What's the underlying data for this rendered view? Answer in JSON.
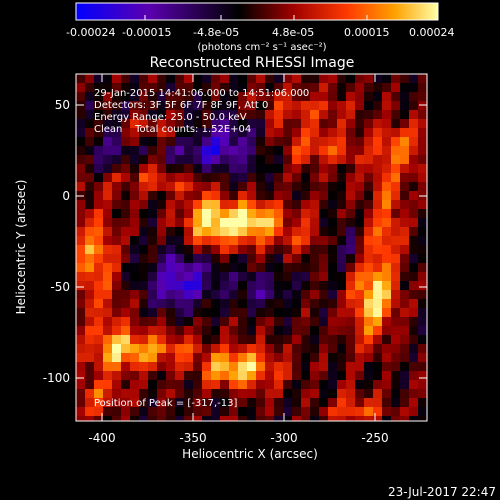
{
  "colorbar": {
    "tick_labels": [
      "-0.00024",
      "-0.00015",
      "-4.8e-05",
      "4.8e-05",
      "0.00015",
      "0.00024"
    ],
    "unit_label": "(photons cm⁻² s⁻¹ asec⁻²)",
    "range": [
      -0.00024,
      0.00024
    ]
  },
  "title": "Reconstructed RHESSI Image",
  "info": {
    "time_range": "29-Jan-2015 14:41:06.000 to 14:51:06.000",
    "detectors": "Detectors: 3F 5F 6F 7F 8F 9F, Att 0",
    "energy_range": "Energy Range: 25.0 - 50.0 keV",
    "clean_counts": "Clean    Total counts: 1.52E+04"
  },
  "peak_label": "Position of Peak = [-317,-13]",
  "axes": {
    "xlabel": "Heliocentric X (arcsec)",
    "ylabel": "Heliocentric Y (arcsec)",
    "x_ticks": [
      "-400",
      "-350",
      "-300",
      "-250"
    ],
    "y_ticks": [
      "50",
      "0",
      "-50",
      "-100"
    ],
    "xlim": [
      -414,
      -222
    ],
    "ylim": [
      -125,
      64
    ]
  },
  "footer_timestamp": "23-Jul-2017 22:47",
  "colors": {
    "background": "#000000",
    "colorbar_stops": [
      "#0000ff",
      "#5a00b0",
      "#000000",
      "#a00000",
      "#ff3a00",
      "#ffa000",
      "#ffffa8"
    ]
  }
}
